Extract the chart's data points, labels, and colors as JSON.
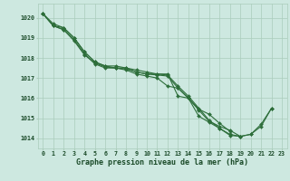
{
  "x": [
    0,
    1,
    2,
    3,
    4,
    5,
    6,
    7,
    8,
    9,
    10,
    11,
    12,
    13,
    14,
    15,
    16,
    17,
    18,
    19,
    20,
    21,
    22,
    23
  ],
  "series": [
    [
      1020.2,
      1019.7,
      1019.5,
      1019.0,
      1018.3,
      1017.8,
      1017.6,
      1017.5,
      1017.5,
      1017.3,
      1017.2,
      1017.2,
      1017.2,
      1016.1,
      1016.0,
      1015.1,
      1014.8,
      1014.5,
      1014.2,
      1014.1,
      1014.2,
      1014.6,
      1015.5,
      null
    ],
    [
      1020.2,
      1019.6,
      1019.4,
      1018.9,
      1018.2,
      1017.7,
      1017.5,
      1017.5,
      1017.4,
      1017.2,
      1017.1,
      1017.0,
      1016.6,
      1016.5,
      1016.0,
      1015.4,
      1014.85,
      1014.6,
      1014.4,
      1014.1,
      null,
      null,
      null,
      null
    ],
    [
      1020.2,
      1019.6,
      1019.4,
      1018.85,
      1018.15,
      1017.75,
      1017.55,
      1017.5,
      1017.45,
      1017.3,
      1017.2,
      1017.15,
      1017.1,
      1016.5,
      1016.0,
      1015.45,
      1015.2,
      1014.75,
      1014.35,
      null,
      null,
      null,
      null,
      null
    ],
    [
      1020.2,
      1019.6,
      1019.5,
      1019.0,
      1018.3,
      1017.8,
      1017.6,
      1017.6,
      1017.5,
      1017.4,
      1017.3,
      1017.2,
      1017.15,
      1016.6,
      1016.1,
      1015.5,
      1014.9,
      1014.5,
      1014.15,
      1014.1,
      1014.2,
      1014.7,
      1015.5,
      null
    ]
  ],
  "bg_color": "#cde8e0",
  "grid_color": "#aaccbb",
  "line_color": "#2d6e3a",
  "marker": "D",
  "marker_size": 2.0,
  "line_width": 0.8,
  "ylabel_ticks": [
    1014,
    1015,
    1016,
    1017,
    1018,
    1019,
    1020
  ],
  "ylim": [
    1013.5,
    1020.7
  ],
  "xlim": [
    -0.5,
    23.5
  ],
  "xticks": [
    0,
    1,
    2,
    3,
    4,
    5,
    6,
    7,
    8,
    9,
    10,
    11,
    12,
    13,
    14,
    15,
    16,
    17,
    18,
    19,
    20,
    21,
    22,
    23
  ],
  "xlabel": "Graphe pression niveau de la mer (hPa)",
  "xlabel_fontsize": 6.0,
  "tick_fontsize": 4.8,
  "label_color": "#1a4a28"
}
